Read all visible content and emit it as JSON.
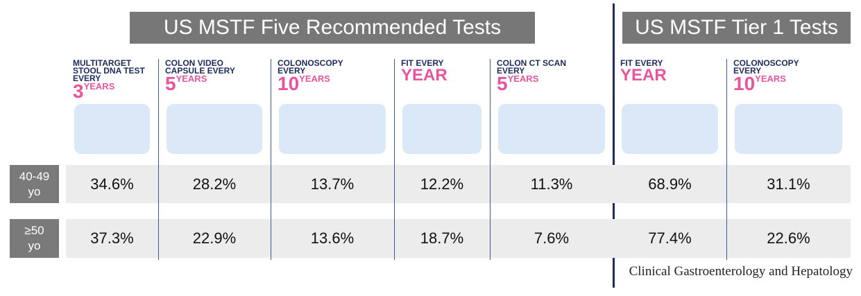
{
  "groups": [
    {
      "title": "US MSTF Five Recommended Tests"
    },
    {
      "title": "US MSTF Tier 1 Tests"
    }
  ],
  "columns": [
    {
      "label": "MULTITARGET STOOL DNA TEST EVERY",
      "number": "3",
      "unit": "YEARS"
    },
    {
      "label": "COLON VIDEO CAPSULE EVERY",
      "number": "5",
      "unit": "YEARS"
    },
    {
      "label": "COLONOSCOPY EVERY",
      "number": "10",
      "unit": "YEARS"
    },
    {
      "label": "FIT EVERY",
      "unit": "YEAR"
    },
    {
      "label": "COLON CT SCAN EVERY",
      "number": "5",
      "unit": "YEARS"
    },
    {
      "label": "FIT EVERY",
      "unit": "YEAR"
    },
    {
      "label": "COLONOSCOPY EVERY",
      "number": "10",
      "unit": "YEARS"
    }
  ],
  "rows": [
    {
      "label": "40-49 yo",
      "cells": [
        "34.6%",
        "28.2%",
        "13.7%",
        "12.2%",
        "11.3%",
        "68.9%",
        "31.1%"
      ]
    },
    {
      "label": "≥50 yo",
      "cells": [
        "37.3%",
        "22.9%",
        "13.6%",
        "18.7%",
        "7.6%",
        "77.4%",
        "22.6%"
      ]
    }
  ],
  "source": "Clinical Gastroenterology and Hepatology"
}
